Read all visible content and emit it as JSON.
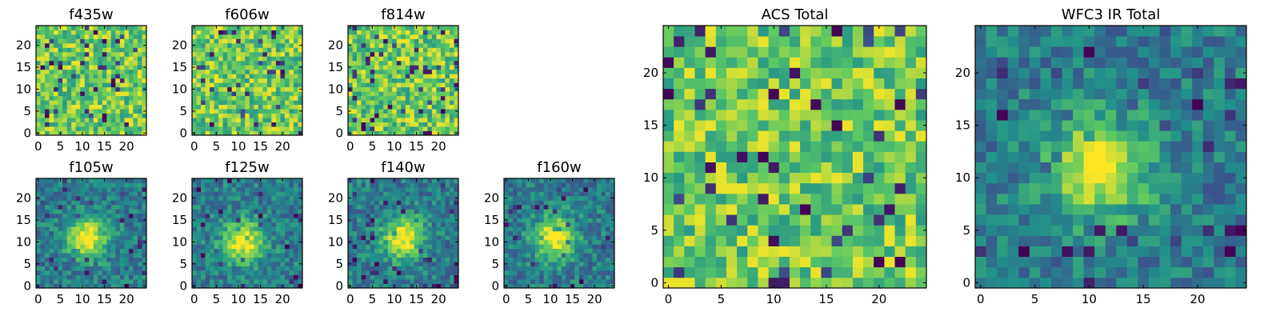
{
  "chart_data": [
    {
      "type": "heatmap",
      "title": "f435w",
      "xticks": [
        "0",
        "5",
        "10",
        "15",
        "20"
      ],
      "yticks": [
        "0",
        "5",
        "10",
        "15",
        "20"
      ],
      "xlim": [
        0,
        25
      ],
      "ylim": [
        0,
        25
      ],
      "size": 25,
      "pattern": "noise-bright"
    },
    {
      "type": "heatmap",
      "title": "f606w",
      "xticks": [
        "0",
        "5",
        "10",
        "15",
        "20"
      ],
      "yticks": [
        "0",
        "5",
        "10",
        "15",
        "20"
      ],
      "xlim": [
        0,
        25
      ],
      "ylim": [
        0,
        25
      ],
      "size": 25,
      "pattern": "noise-bright"
    },
    {
      "type": "heatmap",
      "title": "f814w",
      "xticks": [
        "0",
        "5",
        "10",
        "15",
        "20"
      ],
      "yticks": [
        "0",
        "5",
        "10",
        "15",
        "20"
      ],
      "xlim": [
        0,
        25
      ],
      "ylim": [
        0,
        25
      ],
      "size": 25,
      "pattern": "noise-bright"
    },
    {
      "type": "heatmap",
      "title": "f105w",
      "xticks": [
        "0",
        "5",
        "10",
        "15",
        "20"
      ],
      "yticks": [
        "0",
        "5",
        "10",
        "15",
        "20"
      ],
      "xlim": [
        0,
        25
      ],
      "ylim": [
        0,
        25
      ],
      "size": 25,
      "pattern": "source",
      "source_center": [
        11,
        11
      ]
    },
    {
      "type": "heatmap",
      "title": "f125w",
      "xticks": [
        "0",
        "5",
        "10",
        "15",
        "20"
      ],
      "yticks": [
        "0",
        "5",
        "10",
        "15",
        "20"
      ],
      "xlim": [
        0,
        25
      ],
      "ylim": [
        0,
        25
      ],
      "size": 25,
      "pattern": "source",
      "source_center": [
        11,
        10
      ]
    },
    {
      "type": "heatmap",
      "title": "f140w",
      "xticks": [
        "0",
        "5",
        "10",
        "15",
        "20"
      ],
      "yticks": [
        "0",
        "5",
        "10",
        "15",
        "20"
      ],
      "xlim": [
        0,
        25
      ],
      "ylim": [
        0,
        25
      ],
      "size": 25,
      "pattern": "source",
      "source_center": [
        12,
        11
      ]
    },
    {
      "type": "heatmap",
      "title": "f160w",
      "xticks": [
        "0",
        "5",
        "10",
        "15",
        "20"
      ],
      "yticks": [
        "0",
        "5",
        "10",
        "15",
        "20"
      ],
      "xlim": [
        0,
        25
      ],
      "ylim": [
        0,
        25
      ],
      "size": 25,
      "pattern": "source",
      "source_center": [
        11,
        11
      ]
    },
    {
      "type": "heatmap",
      "title": "ACS Total",
      "xticks": [
        "0",
        "5",
        "10",
        "15",
        "20"
      ],
      "yticks": [
        "0",
        "5",
        "10",
        "15",
        "20"
      ],
      "xlim": [
        0,
        25
      ],
      "ylim": [
        0,
        25
      ],
      "size": 25,
      "pattern": "noise-bright"
    },
    {
      "type": "heatmap",
      "title": "WFC3 IR Total",
      "xticks": [
        "0",
        "5",
        "10",
        "15",
        "20"
      ],
      "yticks": [
        "0",
        "5",
        "10",
        "15",
        "20"
      ],
      "xlim": [
        0,
        25
      ],
      "ylim": [
        0,
        25
      ],
      "size": 25,
      "pattern": "source",
      "source_center": [
        11,
        11
      ]
    }
  ],
  "colormap": "viridis",
  "colormap_stops": [
    "#440154",
    "#3b528b",
    "#21918c",
    "#5ec962",
    "#fde725"
  ]
}
